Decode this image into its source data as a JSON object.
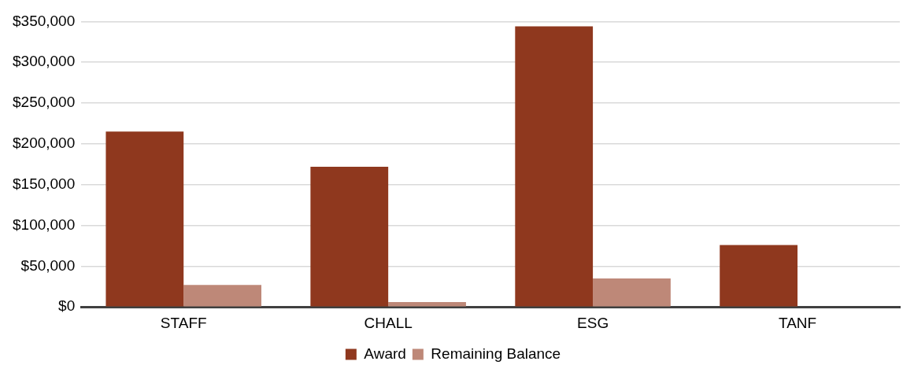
{
  "chart_data": {
    "type": "bar",
    "categories": [
      "STAFF",
      "CHALL",
      "ESG",
      "TANF"
    ],
    "series": [
      {
        "name": "Award",
        "color": "#8f381e",
        "values": [
          215000,
          172000,
          344000,
          76000
        ]
      },
      {
        "name": "Remaining Balance",
        "color": "#be8878",
        "values": [
          27000,
          6000,
          35000,
          0
        ]
      }
    ],
    "ylim": [
      0,
      350000
    ],
    "yticks": [
      {
        "value": 0,
        "label": "$0"
      },
      {
        "value": 50000,
        "label": "$50,000"
      },
      {
        "value": 100000,
        "label": "$100,000"
      },
      {
        "value": 150000,
        "label": "$150,000"
      },
      {
        "value": 200000,
        "label": "$200,000"
      },
      {
        "value": 250000,
        "label": "$250,000"
      },
      {
        "value": 300000,
        "label": "$300,000"
      },
      {
        "value": 350000,
        "label": "$350,000"
      }
    ],
    "grid": "y",
    "legend": "bottom"
  }
}
